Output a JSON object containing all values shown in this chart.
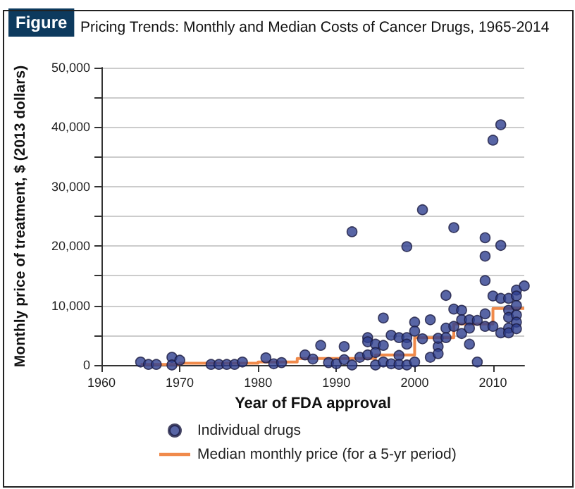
{
  "chart_data": {
    "type": "scatter",
    "title": "Pricing Trends: Monthly and Median Costs of Cancer Drugs, 1965-2014",
    "annotations": [
      "Figure"
    ],
    "xlabel": "Year of FDA approval",
    "ylabel": "Monthly price of treatment, $ (2013 dollars)",
    "xlim": [
      1960,
      2014
    ],
    "xticks": [
      1960,
      1970,
      1980,
      1990,
      2000,
      2010
    ],
    "ylim": [
      0,
      50000
    ],
    "yticks": [
      0,
      {
        "value": 5000,
        "label": null
      },
      {
        "value": 10000,
        "label": "10,000"
      },
      {
        "value": 15000,
        "label": null
      },
      {
        "value": 20000,
        "label": "20,000"
      },
      {
        "value": 25000,
        "label": null
      },
      {
        "value": 30000,
        "label": "30,000"
      },
      {
        "value": 35000,
        "label": null
      },
      {
        "value": 40000,
        "label": "40,000"
      },
      {
        "value": 45000,
        "label": null
      },
      {
        "value": 50000,
        "label": "50,000"
      }
    ],
    "grid": "y",
    "legend": "bottom",
    "marker": "circle",
    "series": [
      {
        "name": "Individual drugs",
        "color": "#2e3f8f",
        "x": [
          1965,
          1966,
          1967,
          1969,
          1969,
          1970,
          1974,
          1975,
          1976,
          1977,
          1978,
          1981,
          1982,
          1983,
          1986,
          1987,
          1988,
          1989,
          1990,
          1991,
          1991,
          1992,
          1992,
          1993,
          1994,
          1994,
          1994,
          1995,
          1995,
          1995,
          1996,
          1996,
          1996,
          1997,
          1997,
          1998,
          1998,
          1998,
          1999,
          1999,
          1999,
          1999,
          2000,
          2000,
          2000,
          2001,
          2001,
          2002,
          2002,
          2003,
          2003,
          2003,
          2004,
          2004,
          2004,
          2005,
          2005,
          2005,
          2006,
          2006,
          2006,
          2007,
          2007,
          2007,
          2008,
          2008,
          2009,
          2009,
          2009,
          2009,
          2009,
          2010,
          2010,
          2010,
          2011,
          2011,
          2011,
          2011,
          2012,
          2012,
          2012,
          2012,
          2012,
          2013,
          2013,
          2013,
          2013,
          2013,
          2013,
          2014
        ],
        "values": [
          500,
          100,
          100,
          1300,
          0,
          800,
          100,
          100,
          100,
          100,
          500,
          1200,
          200,
          400,
          1700,
          1000,
          3300,
          400,
          200,
          3100,
          900,
          22400,
          0,
          1300,
          4600,
          3900,
          1700,
          3500,
          2100,
          0,
          7900,
          3300,
          500,
          5000,
          200,
          4600,
          1600,
          100,
          19900,
          4600,
          3500,
          0,
          7200,
          5700,
          500,
          26100,
          4400,
          7600,
          1300,
          3100,
          4500,
          1900,
          11700,
          6200,
          4600,
          23100,
          9400,
          6500,
          9200,
          7600,
          5300,
          3500,
          7600,
          6200,
          500,
          7500,
          21400,
          18300,
          14200,
          8600,
          6500,
          37800,
          11600,
          6500,
          40400,
          20100,
          11200,
          5400,
          11200,
          9200,
          8000,
          6200,
          5400,
          12600,
          11600,
          10000,
          8400,
          7200,
          6100,
          13300
        ]
      },
      {
        "name": "Median monthly price (for a 5-yr period)",
        "type": "step",
        "color": "#f08a4b",
        "marker": "none",
        "x": [
          1965,
          1970,
          1980,
          1985,
          1995,
          2000,
          2005,
          2010,
          2014
        ],
        "values": [
          100,
          300,
          500,
          1100,
          1700,
          4600,
          6900,
          9500,
          9500
        ]
      }
    ]
  }
}
